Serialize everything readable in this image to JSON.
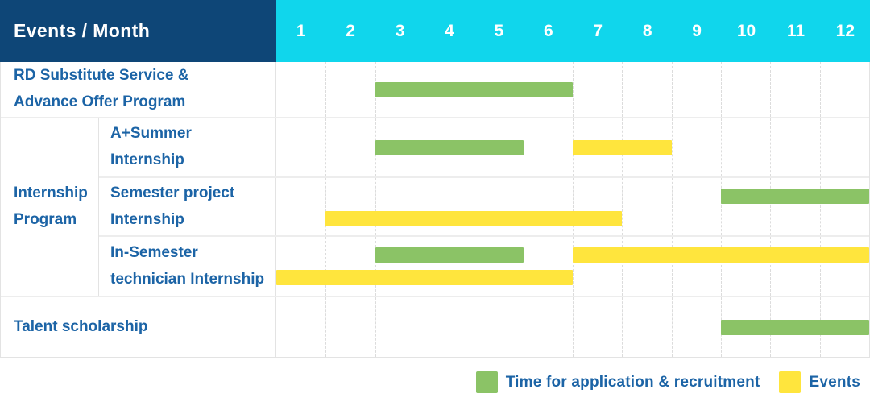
{
  "header": {
    "title": "Events / Month",
    "months": [
      "1",
      "2",
      "3",
      "4",
      "5",
      "6",
      "7",
      "8",
      "9",
      "10",
      "11",
      "12"
    ]
  },
  "labels": {
    "rd_program": [
      "RD Substitute Service &",
      "Advance Offer Program"
    ],
    "internship_group": [
      "Internship",
      "Program"
    ],
    "a_summer": [
      "A+Summer",
      "Internship"
    ],
    "semester_project": [
      "Semester project",
      "Internship"
    ],
    "in_semester": [
      "In-Semester",
      "technician Internship"
    ],
    "talent": [
      "Talent scholarship"
    ]
  },
  "legend": {
    "application": "Time for application & recruitment",
    "events": "Events"
  },
  "colors": {
    "header_bg": "#0e4677",
    "month_header_bg": "#10d6ec",
    "header_text": "#ffffff",
    "label_text": "#1c64a6",
    "application_green": "#8bc366",
    "events_yellow": "#ffe53d",
    "border": "#e3e3e3",
    "row_separator": "#ededed",
    "month_gridline": "#dcdcdc"
  },
  "chart_data": {
    "type": "bar",
    "subtype": "gantt-timeline",
    "title": "Events / Month",
    "x_axis": {
      "label": "Month",
      "ticks": [
        1,
        2,
        3,
        4,
        5,
        6,
        7,
        8,
        9,
        10,
        11,
        12
      ],
      "range": [
        1,
        12
      ]
    },
    "series_legend": [
      {
        "name": "Time for application & recruitment",
        "color": "#8bc366"
      },
      {
        "name": "Events",
        "color": "#ffe53d"
      }
    ],
    "rows": [
      {
        "key": "rd_program",
        "group": null,
        "label": "RD Substitute Service & Advance Offer Program",
        "bars": [
          {
            "series": "application",
            "start_month": 3,
            "end_month": 6,
            "lane": "center"
          }
        ]
      },
      {
        "key": "a_summer",
        "group": "Internship Program",
        "label": "A+Summer Internship",
        "bars": [
          {
            "series": "application",
            "start_month": 3,
            "end_month": 5,
            "lane": "center"
          },
          {
            "series": "events",
            "start_month": 7,
            "end_month": 8,
            "lane": "center"
          }
        ]
      },
      {
        "key": "semester_project",
        "group": "Internship Program",
        "label": "Semester project Internship",
        "bars": [
          {
            "series": "application",
            "start_month": 10,
            "end_month": 12,
            "lane": "top"
          },
          {
            "series": "events",
            "start_month": 2,
            "end_month": 7,
            "lane": "bottom"
          }
        ]
      },
      {
        "key": "in_semester",
        "group": "Internship Program",
        "label": "In-Semester technician Internship",
        "bars": [
          {
            "series": "application",
            "start_month": 3,
            "end_month": 5,
            "lane": "top"
          },
          {
            "series": "events",
            "start_month": 7,
            "end_month": 12,
            "lane": "top"
          },
          {
            "series": "events",
            "start_month": 1,
            "end_month": 6,
            "lane": "bottom"
          }
        ]
      },
      {
        "key": "talent",
        "group": null,
        "label": "Talent scholarship",
        "bars": [
          {
            "series": "application",
            "start_month": 10,
            "end_month": 12,
            "lane": "center"
          }
        ]
      }
    ]
  }
}
